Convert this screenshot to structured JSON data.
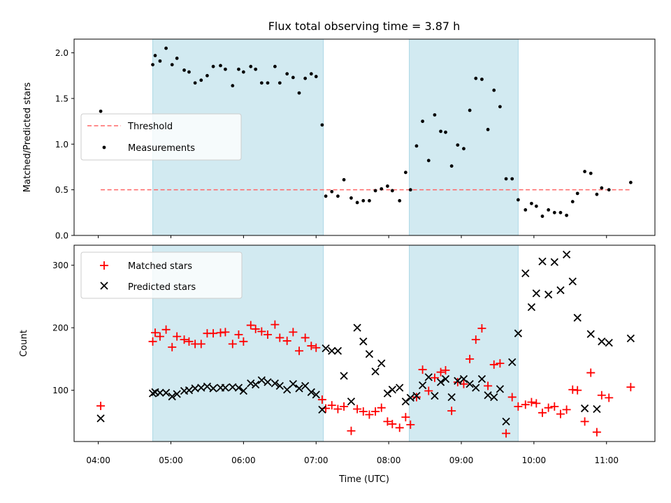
{
  "chart_data": [
    {
      "type": "scatter",
      "title": "Flux total observing time = 3.87 h",
      "ylabel": "Matched/Predicted stars",
      "xlabel": "",
      "ylim": [
        0,
        2.15
      ],
      "yticks": [
        0.0,
        0.5,
        1.0,
        1.5,
        2.0
      ],
      "ytick_labels": [
        "0.0",
        "0.5",
        "1.0",
        "1.5",
        "2.0"
      ],
      "xlim": [
        "03:40",
        "11:40"
      ],
      "legend_position": "center-left",
      "highlight_intervals": [
        [
          "04:45",
          "07:06"
        ],
        [
          "08:17",
          "09:47"
        ]
      ],
      "highlight_color": "#add8e6",
      "series": [
        {
          "name": "Threshold",
          "style": "dashed-line",
          "color": "#ff6666",
          "x": [
            "04:02",
            "11:20"
          ],
          "y": [
            0.5,
            0.5
          ]
        },
        {
          "name": "Measurements",
          "style": "dot",
          "color": "#000000",
          "x": [
            "04:02",
            "04:45",
            "04:47",
            "04:51",
            "04:56",
            "05:01",
            "05:05",
            "05:11",
            "05:15",
            "05:20",
            "05:25",
            "05:30",
            "05:35",
            "05:41",
            "05:45",
            "05:51",
            "05:56",
            "06:00",
            "06:06",
            "06:10",
            "06:15",
            "06:20",
            "06:26",
            "06:30",
            "06:36",
            "06:41",
            "06:46",
            "06:51",
            "06:56",
            "07:00",
            "07:05",
            "07:08",
            "07:13",
            "07:18",
            "07:23",
            "07:29",
            "07:34",
            "07:39",
            "07:44",
            "07:49",
            "07:54",
            "07:59",
            "08:03",
            "08:09",
            "08:14",
            "08:18",
            "08:23",
            "08:28",
            "08:33",
            "08:38",
            "08:43",
            "08:47",
            "08:52",
            "08:57",
            "09:02",
            "09:07",
            "09:12",
            "09:17",
            "09:22",
            "09:27",
            "09:32",
            "09:37",
            "09:42",
            "09:47",
            "09:53",
            "09:58",
            "10:02",
            "10:07",
            "10:12",
            "10:17",
            "10:22",
            "10:27",
            "10:32",
            "10:36",
            "10:42",
            "10:47",
            "10:52",
            "10:56",
            "11:02",
            "11:20"
          ],
          "y": [
            1.36,
            1.87,
            1.97,
            1.91,
            2.05,
            1.87,
            1.94,
            1.81,
            1.79,
            1.67,
            1.7,
            1.75,
            1.85,
            1.86,
            1.82,
            1.64,
            1.82,
            1.79,
            1.85,
            1.82,
            1.67,
            1.67,
            1.85,
            1.67,
            1.77,
            1.73,
            1.56,
            1.72,
            1.77,
            1.74,
            1.21,
            0.43,
            0.48,
            0.43,
            0.61,
            0.41,
            0.36,
            0.38,
            0.38,
            0.49,
            0.51,
            0.54,
            0.49,
            0.38,
            0.69,
            0.5,
            0.98,
            1.25,
            0.82,
            1.32,
            1.14,
            1.13,
            0.76,
            0.99,
            0.95,
            1.37,
            1.72,
            1.71,
            1.16,
            1.59,
            1.41,
            0.62,
            0.62,
            0.39,
            0.28,
            0.35,
            0.32,
            0.21,
            0.28,
            0.25,
            0.25,
            0.22,
            0.37,
            0.46,
            0.7,
            0.68,
            0.45,
            0.52,
            0.5,
            0.58
          ]
        }
      ]
    },
    {
      "type": "scatter",
      "title": "",
      "ylabel": "Count",
      "xlabel": "Time (UTC)",
      "ylim": [
        18,
        332
      ],
      "yticks": [
        100,
        200,
        300
      ],
      "ytick_labels": [
        "100",
        "200",
        "300"
      ],
      "xlim": [
        "03:40",
        "11:40"
      ],
      "xticks": [
        "04:00",
        "05:00",
        "06:00",
        "07:00",
        "08:00",
        "09:00",
        "10:00",
        "11:00"
      ],
      "xtick_labels": [
        "04:00",
        "05:00",
        "06:00",
        "07:00",
        "08:00",
        "09:00",
        "10:00",
        "11:00"
      ],
      "legend_position": "upper-left",
      "highlight_intervals": [
        [
          "04:45",
          "07:06"
        ],
        [
          "08:17",
          "09:47"
        ]
      ],
      "highlight_color": "#add8e6",
      "series": [
        {
          "name": "Matched stars",
          "marker": "plus",
          "color": "#ff0000",
          "x": [
            "04:02",
            "04:45",
            "04:47",
            "04:51",
            "04:56",
            "05:01",
            "05:05",
            "05:11",
            "05:15",
            "05:20",
            "05:25",
            "05:30",
            "05:35",
            "05:41",
            "05:45",
            "05:51",
            "05:56",
            "06:00",
            "06:06",
            "06:10",
            "06:15",
            "06:20",
            "06:26",
            "06:30",
            "06:36",
            "06:41",
            "06:46",
            "06:51",
            "06:56",
            "07:00",
            "07:05",
            "07:08",
            "07:13",
            "07:18",
            "07:23",
            "07:29",
            "07:34",
            "07:39",
            "07:44",
            "07:49",
            "07:54",
            "07:59",
            "08:03",
            "08:09",
            "08:14",
            "08:18",
            "08:23",
            "08:28",
            "08:33",
            "08:38",
            "08:43",
            "08:47",
            "08:52",
            "08:57",
            "09:02",
            "09:07",
            "09:12",
            "09:17",
            "09:22",
            "09:27",
            "09:32",
            "09:37",
            "09:42",
            "09:47",
            "09:53",
            "09:58",
            "10:02",
            "10:07",
            "10:12",
            "10:17",
            "10:22",
            "10:27",
            "10:32",
            "10:36",
            "10:42",
            "10:47",
            "10:52",
            "10:56",
            "11:02",
            "11:20"
          ],
          "y": [
            75,
            178,
            192,
            186,
            197,
            169,
            186,
            181,
            178,
            174,
            174,
            191,
            191,
            192,
            193,
            174,
            189,
            178,
            204,
            198,
            194,
            189,
            205,
            184,
            179,
            193,
            163,
            184,
            171,
            168,
            85,
            71,
            76,
            70,
            74,
            35,
            70,
            66,
            61,
            66,
            72,
            50,
            46,
            40,
            57,
            45,
            89,
            133,
            99,
            120,
            129,
            132,
            67,
            113,
            110,
            150,
            181,
            199,
            107,
            141,
            143,
            31,
            89,
            74,
            77,
            81,
            79,
            64,
            72,
            74,
            62,
            69,
            101,
            100,
            50,
            128,
            33,
            92,
            88,
            105
          ]
        },
        {
          "name": "Predicted stars",
          "marker": "x",
          "color": "#000000",
          "x": [
            "04:02",
            "04:45",
            "04:47",
            "04:51",
            "04:56",
            "05:01",
            "05:05",
            "05:11",
            "05:15",
            "05:20",
            "05:25",
            "05:30",
            "05:35",
            "05:41",
            "05:45",
            "05:51",
            "05:56",
            "06:00",
            "06:06",
            "06:10",
            "06:15",
            "06:20",
            "06:26",
            "06:30",
            "06:36",
            "06:41",
            "06:46",
            "06:51",
            "06:56",
            "07:00",
            "07:05",
            "07:08",
            "07:13",
            "07:18",
            "07:23",
            "07:29",
            "07:34",
            "07:39",
            "07:44",
            "07:49",
            "07:54",
            "07:59",
            "08:03",
            "08:09",
            "08:14",
            "08:18",
            "08:23",
            "08:28",
            "08:33",
            "08:38",
            "08:43",
            "08:47",
            "08:52",
            "08:57",
            "09:02",
            "09:07",
            "09:12",
            "09:17",
            "09:22",
            "09:27",
            "09:32",
            "09:37",
            "09:42",
            "09:47",
            "09:53",
            "09:58",
            "10:02",
            "10:07",
            "10:12",
            "10:17",
            "10:22",
            "10:27",
            "10:32",
            "10:36",
            "10:42",
            "10:47",
            "10:52",
            "10:56",
            "11:02",
            "11:20"
          ],
          "y": [
            55,
            95,
            97,
            96,
            96,
            90,
            94,
            99,
            100,
            103,
            104,
            106,
            103,
            104,
            104,
            105,
            104,
            99,
            111,
            109,
            116,
            113,
            111,
            107,
            101,
            110,
            103,
            107,
            97,
            93,
            69,
            167,
            163,
            163,
            123,
            82,
            200,
            178,
            158,
            130,
            143,
            95,
            101,
            104,
            82,
            88,
            91,
            108,
            121,
            91,
            113,
            118,
            89,
            115,
            118,
            110,
            104,
            118,
            92,
            89,
            102,
            50,
            145,
            191,
            287,
            233,
            255,
            306,
            253,
            305,
            260,
            317,
            274,
            216,
            71,
            190,
            70,
            178,
            176,
            183
          ]
        }
      ]
    }
  ]
}
